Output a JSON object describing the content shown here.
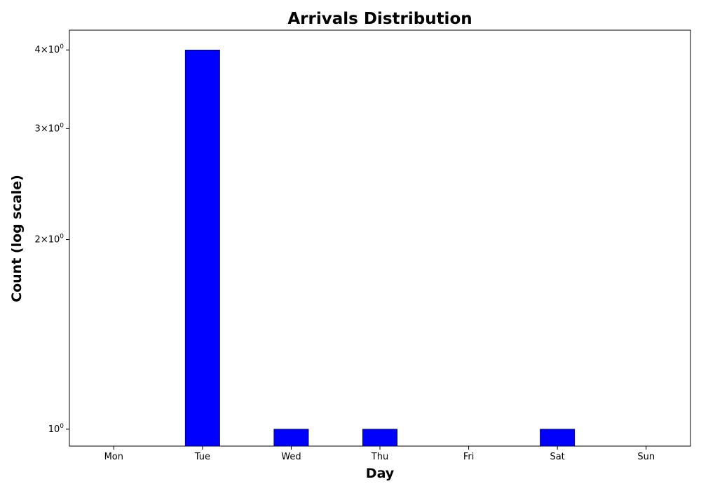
{
  "chart_data": {
    "type": "bar",
    "title": "Arrivals Distribution",
    "xlabel": "Day",
    "ylabel": "Count (log scale)",
    "y_scale": "log",
    "ylim": [
      0.94,
      4.3
    ],
    "categories": [
      "Mon",
      "Tue",
      "Wed",
      "Thu",
      "Fri",
      "Sat",
      "Sun"
    ],
    "values": [
      0,
      4,
      1,
      1,
      0,
      1,
      0
    ],
    "bar_color": "#0000ff",
    "yticks": [
      {
        "value": 1,
        "base": "10",
        "exp": "0",
        "prefix": ""
      },
      {
        "value": 2,
        "base": "10",
        "exp": "0",
        "prefix": "2×"
      },
      {
        "value": 3,
        "base": "10",
        "exp": "0",
        "prefix": "3×"
      },
      {
        "value": 4,
        "base": "10",
        "exp": "0",
        "prefix": "4×"
      }
    ],
    "grid": false,
    "legend": "none"
  }
}
